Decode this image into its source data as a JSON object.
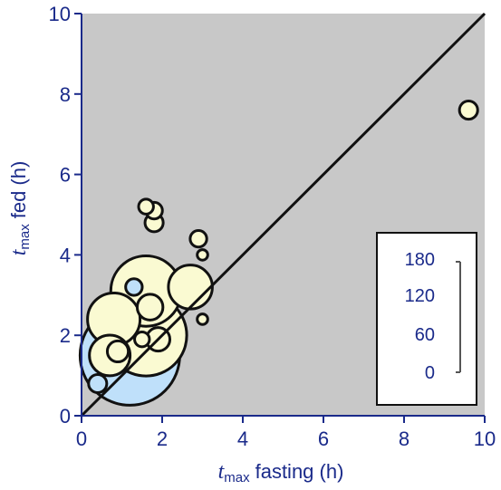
{
  "chart_data": {
    "type": "scatter",
    "xlabel": {
      "italic": "t",
      "sub": "max",
      "text": "fasting (h)"
    },
    "ylabel": {
      "italic": "t",
      "sub": "max",
      "text": "fed (h)"
    },
    "xlim": [
      0,
      10
    ],
    "ylim": [
      0,
      10
    ],
    "xticks": [
      0,
      2,
      4,
      6,
      8,
      10
    ],
    "yticks": [
      0,
      2,
      4,
      6,
      8,
      10
    ],
    "grid": false,
    "background_color": "#c8c8c8",
    "identity_line": true,
    "colors": {
      "yellow": "#fafad2",
      "blue": "#bfe0fa",
      "axis": "#1a2a8a"
    },
    "size_legend": {
      "placement": "bottom-right",
      "labels": [
        "180",
        "120",
        "60",
        "0"
      ]
    },
    "points": [
      {
        "x": 1.2,
        "y": 1.5,
        "size": 180,
        "color": "blue"
      },
      {
        "x": 1.6,
        "y": 2.0,
        "size": 120,
        "color": "yellow"
      },
      {
        "x": 1.6,
        "y": 3.1,
        "size": 90,
        "color": "yellow"
      },
      {
        "x": 0.8,
        "y": 2.4,
        "size": 50,
        "color": "yellow"
      },
      {
        "x": 0.7,
        "y": 1.5,
        "size": 30,
        "color": "yellow"
      },
      {
        "x": 2.7,
        "y": 3.2,
        "size": 35,
        "color": "yellow"
      },
      {
        "x": 1.7,
        "y": 2.7,
        "size": 12,
        "color": "yellow"
      },
      {
        "x": 1.9,
        "y": 1.9,
        "size": 10,
        "color": "yellow"
      },
      {
        "x": 0.9,
        "y": 1.6,
        "size": 8,
        "color": "yellow"
      },
      {
        "x": 1.8,
        "y": 4.8,
        "size": 6,
        "color": "yellow"
      },
      {
        "x": 1.8,
        "y": 5.1,
        "size": 5,
        "color": "yellow"
      },
      {
        "x": 1.6,
        "y": 5.2,
        "size": 4,
        "color": "yellow"
      },
      {
        "x": 2.9,
        "y": 4.4,
        "size": 5,
        "color": "yellow"
      },
      {
        "x": 3.0,
        "y": 4.0,
        "size": 2,
        "color": "yellow"
      },
      {
        "x": 3.0,
        "y": 2.4,
        "size": 2,
        "color": "yellow"
      },
      {
        "x": 1.3,
        "y": 3.2,
        "size": 5,
        "color": "blue"
      },
      {
        "x": 0.4,
        "y": 0.8,
        "size": 6,
        "color": "blue"
      },
      {
        "x": 1.5,
        "y": 1.9,
        "size": 4,
        "color": "yellow"
      },
      {
        "x": 9.6,
        "y": 7.6,
        "size": 6,
        "color": "yellow"
      }
    ]
  }
}
